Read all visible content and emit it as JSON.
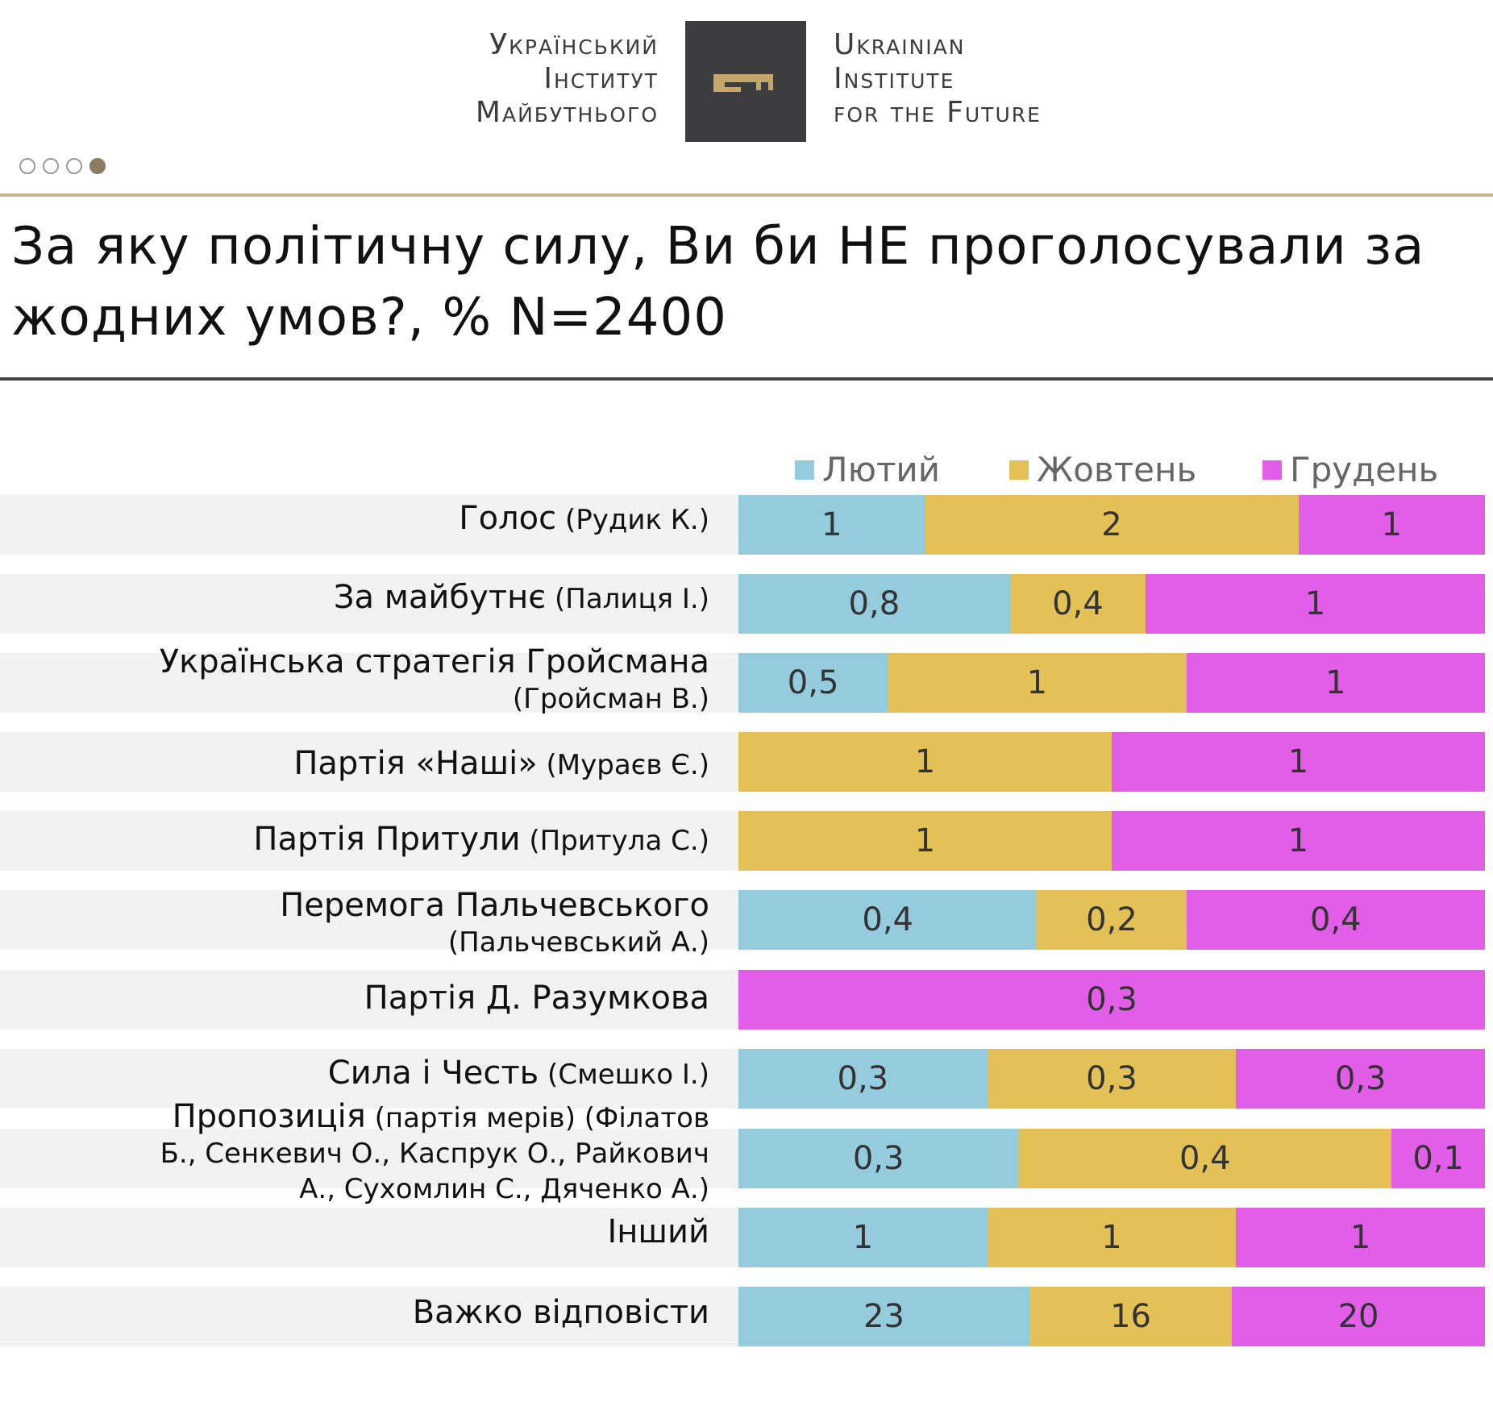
{
  "header": {
    "logo_ua_lines": [
      "Український",
      "Інститут",
      "Майбутнього"
    ],
    "logo_en_lines": [
      "Ukrainian",
      "Institute",
      "for the Future"
    ],
    "slide_indicator": {
      "total": 4,
      "active": 4
    }
  },
  "colors": {
    "feb": "#94cbdd",
    "oct": "#e3c157",
    "dec": "#e25ee8",
    "gold_rule": "#c8b48f",
    "logo_bg": "#3d3c3e",
    "key": "#c4a66a"
  },
  "chart_data": {
    "type": "bar",
    "orientation": "horizontal",
    "stacked": true,
    "normalized": true,
    "title": "За яку політичну силу, Ви би НЕ проголосували за жодних умов?, % N=2400",
    "title_lines": [
      "За яку політичну силу, Ви би НЕ проголосували за",
      "жодних умов?, % N=2400"
    ],
    "legend_position": "top-right",
    "categories": [
      {
        "main": "Голос",
        "sub": "(Рудик К.)"
      },
      {
        "main": "За майбутнє",
        "sub": "(Палиця І.)"
      },
      {
        "main": "Українська стратегія Гройсмана",
        "sub": "(Гройсман В.)"
      },
      {
        "main": "Партія «Наші»",
        "sub": "(Мураєв Є.)"
      },
      {
        "main": "Партія Притули",
        "sub": "(Притула С.)"
      },
      {
        "main": "Перемога Пальчевського",
        "sub": "(Пальчевський А.)"
      },
      {
        "main": "Партія Д. Разумкова",
        "sub": ""
      },
      {
        "main": "Сила і Честь",
        "sub": "(Смешко І.)"
      },
      {
        "main": "Пропозиція",
        "sub": "(партія мерів) (Філатов Б., Сенкевич О., Каспрук О., Райкович А., Сухомлин С., Дяченко А.)"
      },
      {
        "main": "Інший",
        "sub": ""
      },
      {
        "main": "Важко відповісти",
        "sub": ""
      }
    ],
    "series": [
      {
        "name": "Лютий",
        "key": "feb",
        "values": [
          1,
          0.8,
          0.5,
          0,
          0,
          0.4,
          0,
          0.3,
          0.3,
          1,
          23
        ],
        "labels": [
          "1",
          "0,8",
          "0,5",
          "",
          "",
          "0,4",
          "",
          "0,3",
          "0,3",
          "1",
          "23"
        ]
      },
      {
        "name": "Жовтень",
        "key": "oct",
        "values": [
          2,
          0.4,
          1,
          1,
          1,
          0.2,
          0,
          0.3,
          0.4,
          1,
          16
        ],
        "labels": [
          "2",
          "0,4",
          "1",
          "1",
          "1",
          "0,2",
          "",
          "0,3",
          "0,4",
          "1",
          "16"
        ]
      },
      {
        "name": "Грудень",
        "key": "dec",
        "values": [
          1,
          1,
          1,
          1,
          1,
          0.4,
          0.3,
          0.3,
          0.1,
          1,
          20
        ],
        "labels": [
          "1",
          "1",
          "1",
          "1",
          "1",
          "0,4",
          "0,3",
          "0,3",
          "0,1",
          "1",
          "20"
        ]
      }
    ]
  }
}
